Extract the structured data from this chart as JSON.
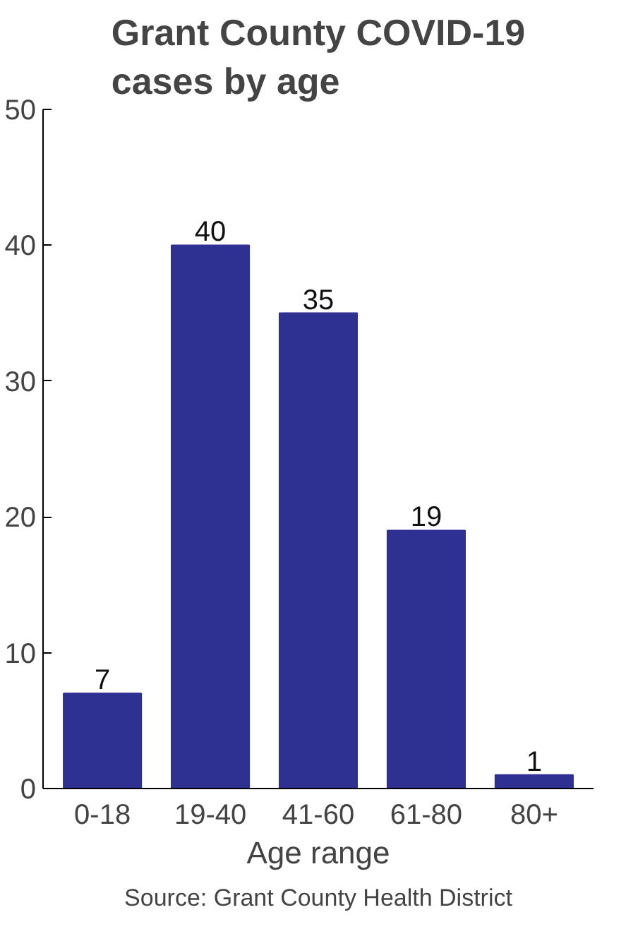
{
  "chart_data": {
    "type": "bar",
    "title": "Grant County COVID-19 cases by age",
    "xlabel": "Age range",
    "categories": [
      "0-18",
      "19-40",
      "41-60",
      "61-80",
      "80+"
    ],
    "values": [
      7,
      40,
      35,
      19,
      1
    ],
    "color": "#2e3192",
    "ylim": [
      0,
      50
    ],
    "yticks": [
      0,
      10,
      20,
      30,
      40,
      50
    ],
    "grid": false,
    "data_labels": true,
    "annotations": [
      "Source: Grant County Health District"
    ]
  }
}
